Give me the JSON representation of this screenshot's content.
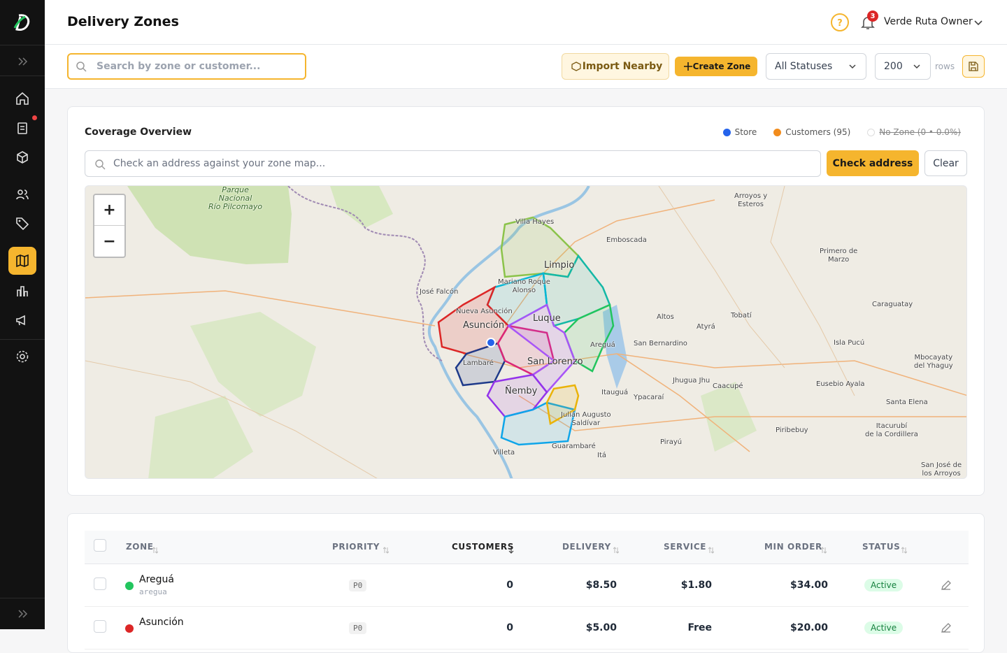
{
  "header": {
    "title": "Delivery Zones",
    "notification_count": 3,
    "user": "Verde Ruta Owner"
  },
  "toolbar": {
    "search_placeholder": "Search by zone or customer...",
    "import_button": "Import Nearby",
    "create_button": "Create Zone",
    "status_filter": "All Statuses",
    "rows_per_page": 200,
    "rows_label": "rows"
  },
  "coverage": {
    "title": "Coverage Overview",
    "legend": [
      {
        "label": "Store",
        "color": "#2563eb"
      },
      {
        "label": "Customers (95)",
        "color": "#f28c1c"
      },
      {
        "label": "No Zone (0 • 0.0%)",
        "color": "#ffffff",
        "disabled": true
      }
    ],
    "address_placeholder": "Check an address against your zone map...",
    "check_button": "Check address",
    "clear_button": "Clear",
    "map": {
      "zoom_in": "+",
      "zoom_out": "−",
      "labels": [
        "Parque\nNacional\nRío Pilcomayo",
        "Villa Hayes",
        "Emboscada",
        "Arroyos y\nEsteros",
        "Primero de\nMarzo",
        "José Falcón",
        "Nueva Asunción",
        "Asunción",
        "Mariano Roque\nAlonso",
        "Limpio",
        "Luque",
        "Lambaré",
        "San Lorenzo",
        "Ñemby",
        "Caraguatay",
        "Tobatí",
        "Altos",
        "Atyrá",
        "Areguá",
        "San Bernardino",
        "Isla Pucú",
        "Mbocayaty\ndel Yhaguy",
        "Itauguá",
        "Ypacaraí",
        "Jhugua Jhu",
        "Caacupé",
        "Eusebio Ayala",
        "Santa Elena",
        "Julián Augusto\nSaldívar",
        "Guarambaré",
        "Villeta",
        "Itá",
        "Pirayú",
        "Piribebuy",
        "Itacurubí\nde la Cordillera",
        "San José de\nlos Arroyos"
      ]
    }
  },
  "table": {
    "columns": [
      "ZONE",
      "PRIORITY",
      "CUSTOMERS",
      "DELIVERY",
      "SERVICE",
      "MIN ORDER",
      "STATUS"
    ],
    "rows": [
      {
        "zone": "Areguá",
        "slug": "aregua",
        "color": "#22c55e",
        "priority": "P0",
        "customers": 0,
        "delivery": "$8.50",
        "service": "$1.80",
        "min_order": "$34.00",
        "status": "Active"
      },
      {
        "zone": "Asunción",
        "color": "#dc2626",
        "priority": "P0",
        "customers": 0,
        "delivery": "$5.00",
        "service": "Free",
        "min_order": "$20.00",
        "status": "Active"
      }
    ]
  }
}
